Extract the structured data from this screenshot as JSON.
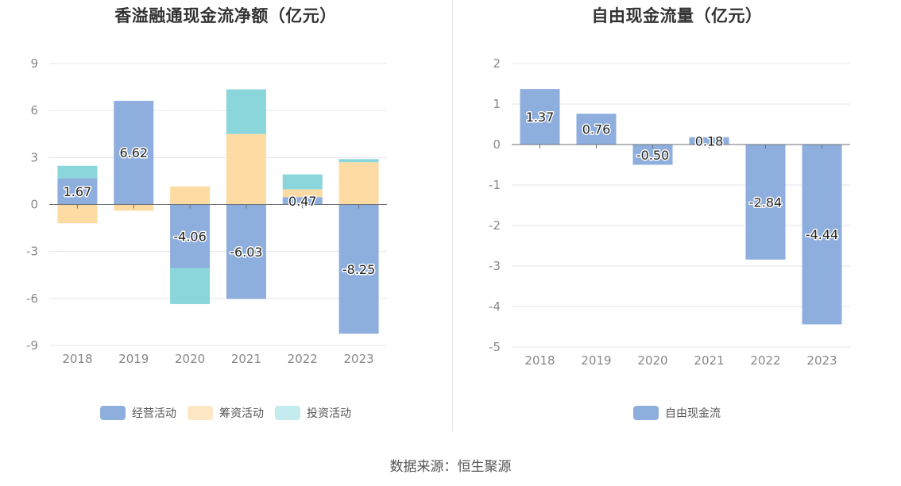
{
  "left_chart": {
    "title": "香溢融通现金流净额（亿元）",
    "legend": [
      {
        "name": "经营活动",
        "color": "#8eaedd"
      },
      {
        "name": "筹资活动",
        "color": "#fedba3"
      },
      {
        "name": "投资活动",
        "color": "#8ad6da"
      }
    ]
  },
  "right_chart": {
    "title": "自由现金流量（亿元）",
    "legend": [
      {
        "name": "自由现金流",
        "color": "#8eaedd"
      }
    ]
  },
  "source_text": "数据来源：恒生聚源",
  "chart_data": [
    {
      "type": "bar",
      "stacked": true,
      "title": "香溢融通现金流净额（亿元）",
      "categories": [
        "2018",
        "2019",
        "2020",
        "2021",
        "2022",
        "2023"
      ],
      "ylim": [
        -9,
        9
      ],
      "yticks": [
        9,
        6,
        3,
        0,
        -3,
        -6,
        -9
      ],
      "grid": true,
      "legend_position": "bottom",
      "series": [
        {
          "name": "经营活动",
          "color": "#8eaedd",
          "values": [
            1.67,
            6.62,
            -4.06,
            -6.03,
            0.47,
            -8.25
          ],
          "labeled": true
        },
        {
          "name": "筹资活动",
          "color": "#fedba3",
          "values": [
            -1.2,
            -0.4,
            1.15,
            4.5,
            0.5,
            2.7
          ]
        },
        {
          "name": "投资活动",
          "color": "#8ad6da",
          "values": [
            0.8,
            0.0,
            -2.3,
            2.85,
            0.95,
            0.2
          ]
        }
      ],
      "data_labels": [
        "1.67",
        "6.62",
        "-4.06",
        "-6.03",
        "0.47",
        "-8.25"
      ]
    },
    {
      "type": "bar",
      "title": "自由现金流量（亿元）",
      "categories": [
        "2018",
        "2019",
        "2020",
        "2021",
        "2022",
        "2023"
      ],
      "ylim": [
        -5,
        2
      ],
      "yticks": [
        2,
        1,
        0,
        -1,
        -2,
        -3,
        -4,
        -5
      ],
      "grid": true,
      "legend_position": "bottom",
      "series": [
        {
          "name": "自由现金流",
          "color": "#8eaedd",
          "values": [
            1.37,
            0.76,
            -0.5,
            0.18,
            -2.84,
            -4.44
          ],
          "labeled": true
        }
      ],
      "data_labels": [
        "1.37",
        "0.76",
        "-0.50",
        "0.18",
        "-2.84",
        "-4.44"
      ]
    }
  ]
}
